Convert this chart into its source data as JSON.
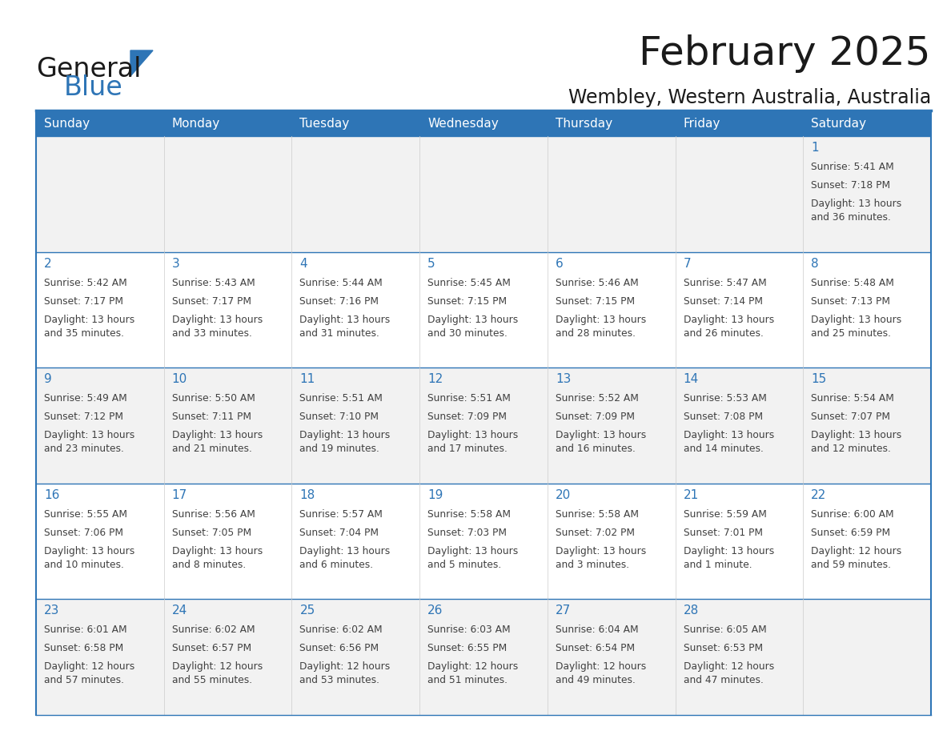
{
  "title": "February 2025",
  "subtitle": "Wembley, Western Australia, Australia",
  "days_of_week": [
    "Sunday",
    "Monday",
    "Tuesday",
    "Wednesday",
    "Thursday",
    "Friday",
    "Saturday"
  ],
  "header_bg": "#2E75B6",
  "header_text": "#FFFFFF",
  "cell_bg_light": "#F2F2F2",
  "cell_bg_white": "#FFFFFF",
  "border_color": "#2E75B6",
  "day_num_color": "#2E75B6",
  "cell_text_color": "#404040",
  "title_color": "#1a1a1a",
  "subtitle_color": "#1a1a1a",
  "logo_general_color": "#1a1a1a",
  "logo_blue_color": "#2E75B6",
  "calendar_data": [
    [
      null,
      null,
      null,
      null,
      null,
      null,
      {
        "day": 1,
        "sunrise": "5:41 AM",
        "sunset": "7:18 PM",
        "daylight": "13 hours\nand 36 minutes."
      }
    ],
    [
      {
        "day": 2,
        "sunrise": "5:42 AM",
        "sunset": "7:17 PM",
        "daylight": "13 hours\nand 35 minutes."
      },
      {
        "day": 3,
        "sunrise": "5:43 AM",
        "sunset": "7:17 PM",
        "daylight": "13 hours\nand 33 minutes."
      },
      {
        "day": 4,
        "sunrise": "5:44 AM",
        "sunset": "7:16 PM",
        "daylight": "13 hours\nand 31 minutes."
      },
      {
        "day": 5,
        "sunrise": "5:45 AM",
        "sunset": "7:15 PM",
        "daylight": "13 hours\nand 30 minutes."
      },
      {
        "day": 6,
        "sunrise": "5:46 AM",
        "sunset": "7:15 PM",
        "daylight": "13 hours\nand 28 minutes."
      },
      {
        "day": 7,
        "sunrise": "5:47 AM",
        "sunset": "7:14 PM",
        "daylight": "13 hours\nand 26 minutes."
      },
      {
        "day": 8,
        "sunrise": "5:48 AM",
        "sunset": "7:13 PM",
        "daylight": "13 hours\nand 25 minutes."
      }
    ],
    [
      {
        "day": 9,
        "sunrise": "5:49 AM",
        "sunset": "7:12 PM",
        "daylight": "13 hours\nand 23 minutes."
      },
      {
        "day": 10,
        "sunrise": "5:50 AM",
        "sunset": "7:11 PM",
        "daylight": "13 hours\nand 21 minutes."
      },
      {
        "day": 11,
        "sunrise": "5:51 AM",
        "sunset": "7:10 PM",
        "daylight": "13 hours\nand 19 minutes."
      },
      {
        "day": 12,
        "sunrise": "5:51 AM",
        "sunset": "7:09 PM",
        "daylight": "13 hours\nand 17 minutes."
      },
      {
        "day": 13,
        "sunrise": "5:52 AM",
        "sunset": "7:09 PM",
        "daylight": "13 hours\nand 16 minutes."
      },
      {
        "day": 14,
        "sunrise": "5:53 AM",
        "sunset": "7:08 PM",
        "daylight": "13 hours\nand 14 minutes."
      },
      {
        "day": 15,
        "sunrise": "5:54 AM",
        "sunset": "7:07 PM",
        "daylight": "13 hours\nand 12 minutes."
      }
    ],
    [
      {
        "day": 16,
        "sunrise": "5:55 AM",
        "sunset": "7:06 PM",
        "daylight": "13 hours\nand 10 minutes."
      },
      {
        "day": 17,
        "sunrise": "5:56 AM",
        "sunset": "7:05 PM",
        "daylight": "13 hours\nand 8 minutes."
      },
      {
        "day": 18,
        "sunrise": "5:57 AM",
        "sunset": "7:04 PM",
        "daylight": "13 hours\nand 6 minutes."
      },
      {
        "day": 19,
        "sunrise": "5:58 AM",
        "sunset": "7:03 PM",
        "daylight": "13 hours\nand 5 minutes."
      },
      {
        "day": 20,
        "sunrise": "5:58 AM",
        "sunset": "7:02 PM",
        "daylight": "13 hours\nand 3 minutes."
      },
      {
        "day": 21,
        "sunrise": "5:59 AM",
        "sunset": "7:01 PM",
        "daylight": "13 hours\nand 1 minute."
      },
      {
        "day": 22,
        "sunrise": "6:00 AM",
        "sunset": "6:59 PM",
        "daylight": "12 hours\nand 59 minutes."
      }
    ],
    [
      {
        "day": 23,
        "sunrise": "6:01 AM",
        "sunset": "6:58 PM",
        "daylight": "12 hours\nand 57 minutes."
      },
      {
        "day": 24,
        "sunrise": "6:02 AM",
        "sunset": "6:57 PM",
        "daylight": "12 hours\nand 55 minutes."
      },
      {
        "day": 25,
        "sunrise": "6:02 AM",
        "sunset": "6:56 PM",
        "daylight": "12 hours\nand 53 minutes."
      },
      {
        "day": 26,
        "sunrise": "6:03 AM",
        "sunset": "6:55 PM",
        "daylight": "12 hours\nand 51 minutes."
      },
      {
        "day": 27,
        "sunrise": "6:04 AM",
        "sunset": "6:54 PM",
        "daylight": "12 hours\nand 49 minutes."
      },
      {
        "day": 28,
        "sunrise": "6:05 AM",
        "sunset": "6:53 PM",
        "daylight": "12 hours\nand 47 minutes."
      },
      null
    ]
  ],
  "fig_width": 11.88,
  "fig_height": 9.18,
  "title_fontsize": 36,
  "subtitle_fontsize": 17,
  "dow_fontsize": 11,
  "day_num_fontsize": 11,
  "cell_text_fontsize": 8.8
}
